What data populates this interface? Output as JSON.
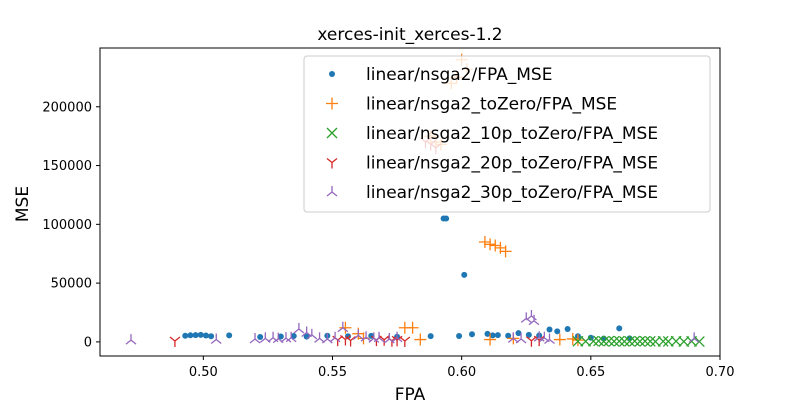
{
  "chart_data": {
    "type": "scatter",
    "title": "xerces-init_xerces-1.2",
    "xlabel": "FPA",
    "ylabel": "MSE",
    "xlim": [
      0.46,
      0.7
    ],
    "ylim": [
      -12000,
      250000
    ],
    "xticks": [
      "0.50",
      "0.55",
      "0.60",
      "0.65",
      "0.70"
    ],
    "xtick_values": [
      0.5,
      0.55,
      0.6,
      0.65,
      0.7
    ],
    "yticks": [
      "0",
      "50000",
      "100000",
      "150000",
      "200000"
    ],
    "ytick_values": [
      0,
      50000,
      100000,
      150000,
      200000
    ],
    "grid": false,
    "legend_position": "top-right",
    "series": [
      {
        "name": "linear/nsga2/FPA_MSE",
        "marker": "dot",
        "color": "#1f77b4",
        "points": [
          [
            0.493,
            5200
          ],
          [
            0.495,
            5600
          ],
          [
            0.497,
            5800
          ],
          [
            0.499,
            6000
          ],
          [
            0.501,
            5400
          ],
          [
            0.503,
            4800
          ],
          [
            0.51,
            5500
          ],
          [
            0.522,
            4200
          ],
          [
            0.53,
            4600
          ],
          [
            0.535,
            5000
          ],
          [
            0.54,
            4500
          ],
          [
            0.548,
            5200
          ],
          [
            0.556,
            4800
          ],
          [
            0.565,
            5100
          ],
          [
            0.575,
            4400
          ],
          [
            0.588,
            4900
          ],
          [
            0.593,
            105000
          ],
          [
            0.594,
            105000
          ],
          [
            0.599,
            5000
          ],
          [
            0.601,
            57000
          ],
          [
            0.604,
            6500
          ],
          [
            0.61,
            6800
          ],
          [
            0.612,
            5500
          ],
          [
            0.614,
            5800
          ],
          [
            0.618,
            5200
          ],
          [
            0.622,
            7500
          ],
          [
            0.626,
            6000
          ],
          [
            0.63,
            5400
          ],
          [
            0.634,
            10500
          ],
          [
            0.637,
            9000
          ],
          [
            0.641,
            11000
          ],
          [
            0.645,
            4800
          ],
          [
            0.65,
            3500
          ],
          [
            0.655,
            2800
          ],
          [
            0.661,
            11500
          ],
          [
            0.665,
            3000
          ]
        ]
      },
      {
        "name": "linear/nsga2_toZero/FPA_MSE",
        "marker": "plus",
        "color": "#ff7f0e",
        "points": [
          [
            0.555,
            12000
          ],
          [
            0.56,
            7000
          ],
          [
            0.562,
            3000
          ],
          [
            0.578,
            12000
          ],
          [
            0.581,
            12000
          ],
          [
            0.584,
            2000
          ],
          [
            0.588,
            175000
          ],
          [
            0.59,
            170000
          ],
          [
            0.592,
            168000
          ],
          [
            0.596,
            220000
          ],
          [
            0.598,
            225000
          ],
          [
            0.6,
            240000
          ],
          [
            0.602,
            232000
          ],
          [
            0.609,
            85000
          ],
          [
            0.611,
            83000
          ],
          [
            0.613,
            82000
          ],
          [
            0.615,
            80000
          ],
          [
            0.617,
            77000
          ],
          [
            0.611,
            2000
          ],
          [
            0.62,
            3000
          ],
          [
            0.638,
            2000
          ],
          [
            0.643,
            2500
          ],
          [
            0.645,
            1500
          ]
        ]
      },
      {
        "name": "linear/nsga2_10p_toZero/FPA_MSE",
        "marker": "x",
        "color": "#2ca02c",
        "points": [
          [
            0.645,
            500
          ],
          [
            0.648,
            500
          ],
          [
            0.651,
            600
          ],
          [
            0.653,
            800
          ],
          [
            0.655,
            400
          ],
          [
            0.657,
            700
          ],
          [
            0.659,
            500
          ],
          [
            0.661,
            600
          ],
          [
            0.663,
            400
          ],
          [
            0.665,
            500
          ],
          [
            0.667,
            700
          ],
          [
            0.669,
            400
          ],
          [
            0.671,
            600
          ],
          [
            0.673,
            500
          ],
          [
            0.675,
            300
          ],
          [
            0.678,
            500
          ],
          [
            0.68,
            400
          ],
          [
            0.683,
            600
          ],
          [
            0.686,
            300
          ],
          [
            0.689,
            500
          ],
          [
            0.692,
            300
          ]
        ]
      },
      {
        "name": "linear/nsga2_20p_toZero/FPA_MSE",
        "marker": "tri-down",
        "color": "#d62728",
        "points": [
          [
            0.489,
            800
          ],
          [
            0.552,
            1500
          ],
          [
            0.555,
            2000
          ],
          [
            0.557,
            1200
          ],
          [
            0.567,
            1500
          ],
          [
            0.57,
            1800
          ],
          [
            0.573,
            1000
          ],
          [
            0.575,
            1400
          ],
          [
            0.578,
            800
          ],
          [
            0.586,
            170000
          ],
          [
            0.588,
            168000
          ],
          [
            0.59,
            165000
          ],
          [
            0.627,
            1000
          ],
          [
            0.63,
            1500
          ]
        ]
      },
      {
        "name": "linear/nsga2_30p_toZero/FPA_MSE",
        "marker": "tri-up",
        "color": "#9467bd",
        "points": [
          [
            0.472,
            1500
          ],
          [
            0.505,
            2000
          ],
          [
            0.52,
            2500
          ],
          [
            0.524,
            3000
          ],
          [
            0.527,
            3500
          ],
          [
            0.529,
            2800
          ],
          [
            0.532,
            3200
          ],
          [
            0.534,
            3500
          ],
          [
            0.537,
            11000
          ],
          [
            0.54,
            8000
          ],
          [
            0.542,
            6000
          ],
          [
            0.545,
            3000
          ],
          [
            0.548,
            2500
          ],
          [
            0.551,
            3500
          ],
          [
            0.554,
            12000
          ],
          [
            0.56,
            5500
          ],
          [
            0.563,
            4000
          ],
          [
            0.566,
            3000
          ],
          [
            0.568,
            3500
          ],
          [
            0.572,
            2500
          ],
          [
            0.575,
            3500
          ],
          [
            0.62,
            3000
          ],
          [
            0.623,
            2500
          ],
          [
            0.625,
            20000
          ],
          [
            0.627,
            22000
          ],
          [
            0.628,
            18000
          ],
          [
            0.63,
            4000
          ],
          [
            0.632,
            3500
          ],
          [
            0.634,
            2000
          ],
          [
            0.69,
            3000
          ]
        ]
      }
    ]
  }
}
